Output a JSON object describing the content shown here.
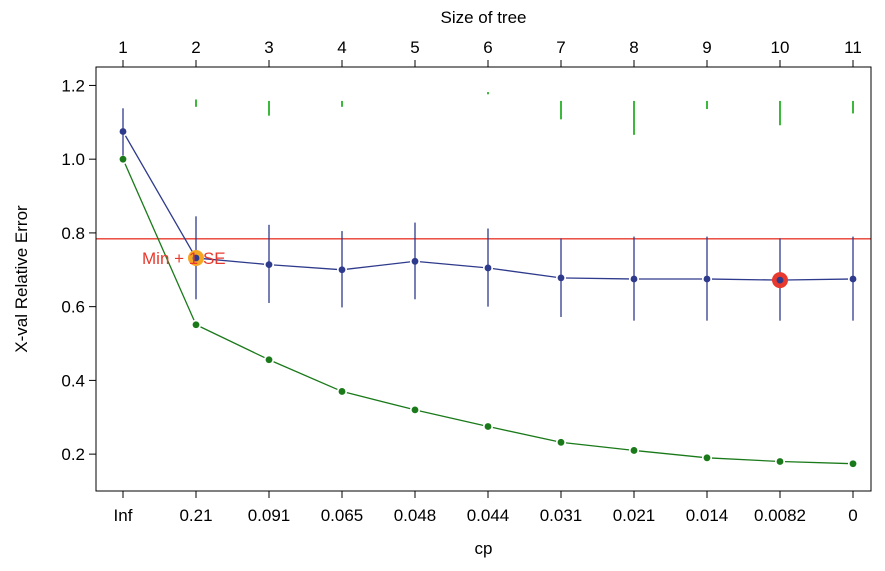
{
  "chart_data": {
    "type": "line",
    "xlabel": "cp",
    "ylabel": "X-val Relative Error",
    "top_axis_label": "Size of tree",
    "ylim": [
      0.1,
      1.25
    ],
    "yticks": [
      0.2,
      0.4,
      0.6,
      0.8,
      1.0,
      1.2
    ],
    "ytick_labels": [
      "0.2",
      "0.4",
      "0.6",
      "0.8",
      "1.0",
      "1.2"
    ],
    "categories": [
      "Inf",
      "0.21",
      "0.091",
      "0.065",
      "0.048",
      "0.044",
      "0.031",
      "0.021",
      "0.014",
      "0.0082",
      "0"
    ],
    "top_ticks": [
      "1",
      "2",
      "3",
      "4",
      "5",
      "6",
      "7",
      "8",
      "9",
      "10",
      "11"
    ],
    "series": [
      {
        "color": "#2e3a8c",
        "values": [
          1.075,
          0.732,
          0.714,
          0.7,
          0.723,
          0.705,
          0.678,
          0.675,
          0.675,
          0.672,
          0.675
        ],
        "lower": [
          1.01,
          0.62,
          0.61,
          0.598,
          0.62,
          0.6,
          0.572,
          0.562,
          0.562,
          0.562,
          0.562
        ],
        "upper": [
          1.138,
          0.845,
          0.822,
          0.805,
          0.828,
          0.812,
          0.785,
          0.79,
          0.79,
          0.785,
          0.79
        ]
      },
      {
        "color": "#1a7a1a",
        "values": [
          1.0,
          0.551,
          0.456,
          0.37,
          0.32,
          0.275,
          0.232,
          0.21,
          0.19,
          0.18,
          0.174
        ]
      }
    ],
    "top_marks": {
      "color": "#3cb83c",
      "upper": [
        null,
        1.162,
        1.158,
        1.158,
        null,
        1.182,
        1.158,
        1.158,
        1.158,
        1.158,
        1.158
      ],
      "lower": [
        null,
        1.142,
        1.118,
        1.142,
        null,
        1.176,
        1.108,
        1.066,
        1.136,
        1.092,
        1.124
      ]
    },
    "reference_line": {
      "value": 0.784,
      "color": "#e8392e"
    },
    "highlight_min_1se": {
      "index": 1,
      "label": "Min + 1 SE",
      "color": "#f5a623",
      "label_color": "#e8392e"
    },
    "highlight_min": {
      "index": 9,
      "color": "#e8392e"
    }
  }
}
